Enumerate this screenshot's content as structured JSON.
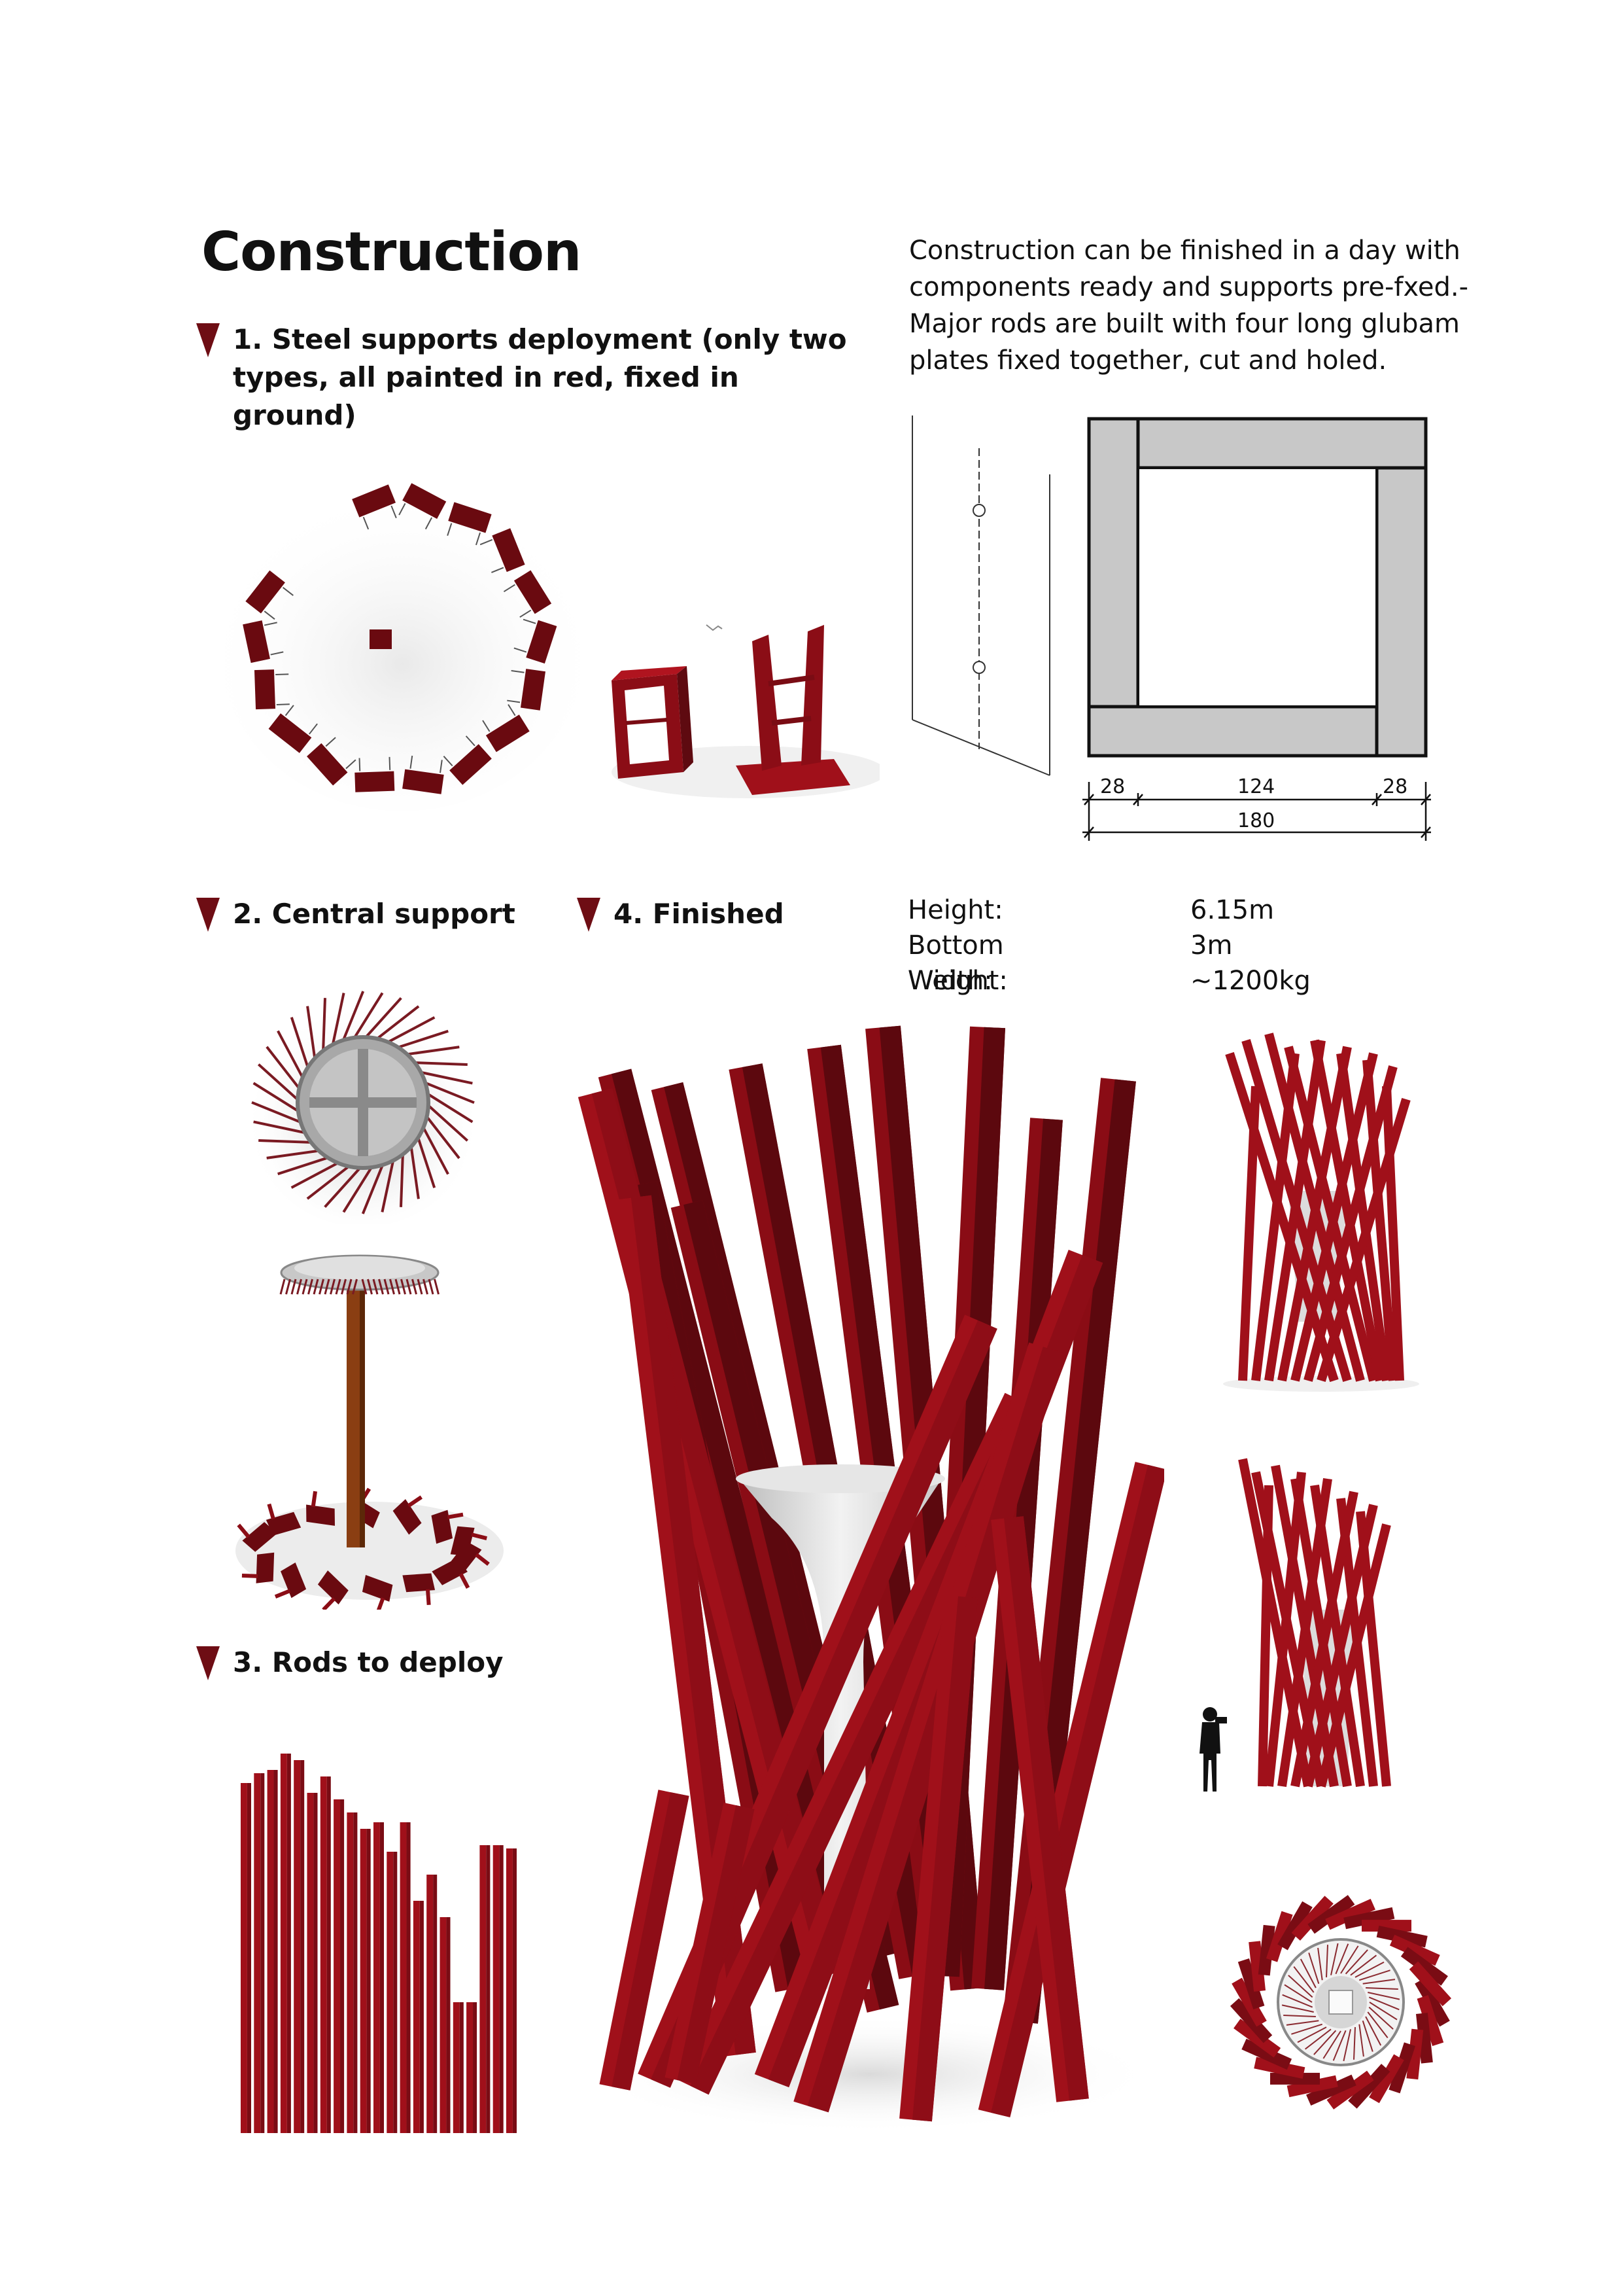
{
  "page": {
    "title": "Construction",
    "intro": "Construction can be finished in a day with components ready and supports pre-fxed.- Major rods are built with four long glubam plates fixed together, cut and holed."
  },
  "sections": [
    {
      "label": "1. Steel supports deployment (only two types, all painted in red, fixed in ground)"
    },
    {
      "label": "2. Central support"
    },
    {
      "label": "3. Rods to deploy"
    },
    {
      "label": "4. Finished"
    }
  ],
  "cross_section": {
    "dims_top": [
      "28",
      "124",
      "28"
    ],
    "dim_total": "180"
  },
  "specs": [
    {
      "label": "Height:",
      "value": "6.15m"
    },
    {
      "label": "Bottom Width:",
      "value": "3m"
    },
    {
      "label": "Weight:",
      "value": "~1200kg"
    }
  ],
  "colors": {
    "accent_red": "#a0101a",
    "dark_red": "#6a0a10",
    "marker": "#6e0d14",
    "plate_grey": "#c8c8c8",
    "steel_grey": "#9a9a9a",
    "pole_brown": "#8a3e12"
  },
  "icons": [
    "section-marker-icon",
    "photographer-icon"
  ]
}
